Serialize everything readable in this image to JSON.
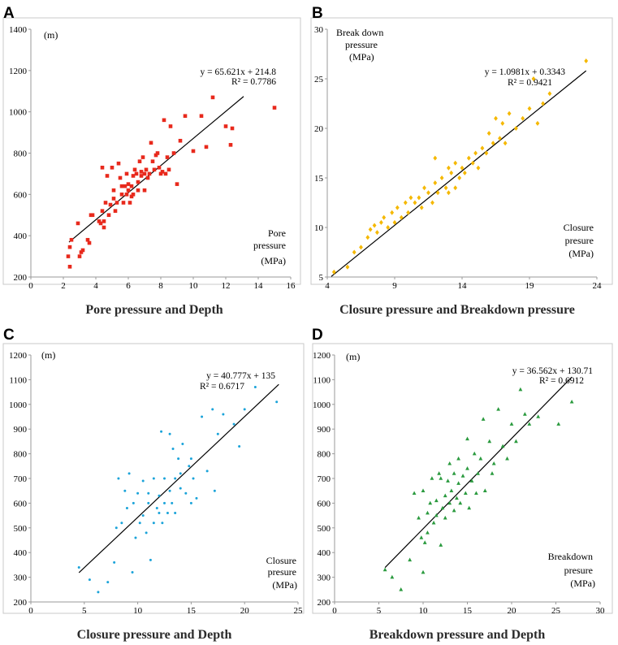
{
  "chart_data": [
    {
      "panel_label": "A",
      "type": "scatter",
      "marker": "square",
      "color": "#e8291c",
      "title": "Pore pressure and Depth",
      "ylabel": "(m)",
      "xlabel_lines": [
        "Pore",
        "pressure",
        "(MPa)"
      ],
      "xlim": [
        0,
        16
      ],
      "ylim": [
        200,
        1400
      ],
      "xticks": [
        0,
        2,
        4,
        6,
        8,
        10,
        12,
        14,
        16
      ],
      "yticks": [
        200,
        400,
        600,
        800,
        1000,
        1200,
        1400
      ],
      "equation": "y = 65.621x + 214.8",
      "r2": "R² = 0.7786",
      "fit": {
        "slope": 65.621,
        "intercept": 214.8,
        "x_range": [
          2.35,
          13.1
        ]
      },
      "x": [
        2.3,
        2.4,
        2.4,
        2.5,
        2.9,
        3.0,
        3.1,
        3.2,
        3.5,
        3.6,
        3.7,
        3.8,
        4.2,
        4.3,
        4.4,
        4.4,
        4.5,
        4.5,
        4.6,
        4.7,
        4.8,
        4.9,
        5.0,
        5.1,
        5.1,
        5.2,
        5.3,
        5.4,
        5.5,
        5.6,
        5.6,
        5.7,
        5.8,
        5.9,
        5.9,
        6.0,
        6.0,
        6.1,
        6.2,
        6.2,
        6.3,
        6.3,
        6.4,
        6.5,
        6.6,
        6.6,
        6.7,
        6.8,
        6.8,
        6.9,
        7.0,
        7.0,
        7.1,
        7.2,
        7.3,
        7.4,
        7.5,
        7.6,
        7.7,
        7.8,
        7.9,
        8.0,
        8.1,
        8.2,
        8.3,
        8.4,
        8.5,
        8.6,
        8.8,
        9.0,
        9.2,
        9.5,
        10.0,
        10.5,
        10.8,
        11.2,
        12.0,
        12.3,
        12.4,
        15.0
      ],
      "y": [
        300,
        250,
        345,
        380,
        460,
        300,
        320,
        330,
        380,
        365,
        500,
        500,
        470,
        460,
        520,
        730,
        440,
        470,
        560,
        690,
        500,
        550,
        730,
        620,
        580,
        520,
        560,
        750,
        680,
        640,
        600,
        560,
        640,
        600,
        700,
        620,
        650,
        560,
        590,
        640,
        690,
        600,
        720,
        700,
        620,
        660,
        760,
        690,
        710,
        780,
        620,
        700,
        720,
        680,
        700,
        850,
        760,
        720,
        790,
        800,
        730,
        700,
        710,
        960,
        700,
        780,
        720,
        930,
        800,
        650,
        860,
        980,
        810,
        980,
        830,
        1070,
        930,
        840,
        920,
        1020
      ]
    },
    {
      "panel_label": "B",
      "type": "scatter",
      "marker": "diamond",
      "color": "#f5b800",
      "title": "Closure pressure and Breakdown pressure",
      "ylabel_lines": [
        "Break down",
        "pressure",
        "(MPa)"
      ],
      "xlabel_lines": [
        "Closure",
        "presure",
        "(MPa)"
      ],
      "xlim": [
        4,
        24
      ],
      "ylim": [
        5,
        30
      ],
      "xticks": [
        4,
        9,
        14,
        19,
        24
      ],
      "yticks": [
        5,
        10,
        15,
        20,
        25,
        30
      ],
      "equation": "y = 1.0981x + 0.3343",
      "r2": "R² = 0.9421",
      "fit": {
        "slope": 1.0981,
        "intercept": 0.3343,
        "x_range": [
          4.3,
          23.2
        ]
      },
      "x": [
        4.5,
        5.5,
        6.0,
        6.5,
        7.0,
        7.2,
        7.5,
        7.7,
        8.0,
        8.2,
        8.5,
        8.8,
        9.0,
        9.2,
        9.5,
        9.8,
        10.0,
        10.2,
        10.5,
        10.8,
        11.0,
        11.2,
        11.5,
        11.8,
        12.0,
        12.0,
        12.2,
        12.5,
        12.8,
        13.0,
        13.0,
        13.2,
        13.5,
        13.5,
        13.8,
        14.0,
        14.2,
        14.5,
        14.8,
        15.0,
        15.2,
        15.5,
        15.8,
        16.0,
        16.3,
        16.5,
        16.8,
        17.0,
        17.2,
        17.5,
        18.0,
        18.5,
        19.0,
        19.3,
        19.6,
        20.0,
        20.5,
        23.2
      ],
      "y": [
        5.5,
        6.0,
        7.5,
        8.0,
        9.0,
        9.8,
        10.2,
        9.5,
        10.5,
        11.0,
        10.0,
        11.5,
        10.5,
        12.0,
        11.0,
        12.5,
        11.5,
        13.0,
        12.5,
        13.0,
        12.0,
        14.0,
        13.5,
        12.5,
        14.5,
        17.0,
        13.5,
        15.0,
        14.0,
        16.0,
        13.5,
        15.5,
        16.5,
        14.0,
        15.0,
        16.0,
        15.5,
        17.0,
        16.5,
        17.5,
        16.0,
        18.0,
        17.5,
        19.5,
        18.5,
        21.0,
        19.0,
        20.5,
        18.5,
        21.5,
        20.0,
        21.0,
        22.0,
        25.0,
        20.5,
        22.5,
        23.5,
        26.8
      ]
    },
    {
      "panel_label": "C",
      "type": "scatter",
      "marker": "dot",
      "color": "#1aa3d9",
      "title": "Closure pressure and Depth",
      "ylabel": "(m)",
      "xlabel_lines": [
        "Closure",
        "presure",
        "(MPa)"
      ],
      "xlim": [
        0,
        25
      ],
      "ylim": [
        200,
        1200
      ],
      "xticks": [
        0,
        5,
        10,
        15,
        20,
        25
      ],
      "yticks": [
        200,
        300,
        400,
        500,
        600,
        700,
        800,
        900,
        1000,
        1100,
        1200
      ],
      "equation": "y = 40.777x + 135",
      "r2": "R² = 0.6717",
      "fit": {
        "slope": 40.777,
        "intercept": 135,
        "x_range": [
          4.5,
          23.2
        ]
      },
      "x": [
        4.5,
        5.5,
        6.3,
        7.2,
        7.8,
        8.0,
        8.2,
        8.5,
        8.8,
        9.0,
        9.2,
        9.5,
        9.6,
        9.8,
        10.0,
        10.2,
        10.5,
        10.5,
        10.8,
        11.0,
        11.0,
        11.2,
        11.5,
        11.5,
        11.8,
        12.0,
        12.0,
        12.2,
        12.3,
        12.5,
        12.5,
        12.8,
        13.0,
        13.0,
        13.2,
        13.3,
        13.5,
        13.5,
        13.8,
        14.0,
        14.0,
        14.2,
        14.5,
        14.8,
        15.0,
        15.0,
        15.2,
        15.5,
        16.0,
        16.5,
        17.0,
        17.2,
        17.5,
        18.0,
        19.0,
        19.5,
        20.0,
        21.0,
        23.0
      ],
      "y": [
        340,
        290,
        240,
        280,
        360,
        500,
        700,
        520,
        650,
        580,
        720,
        320,
        600,
        460,
        640,
        520,
        550,
        690,
        480,
        600,
        640,
        370,
        520,
        700,
        580,
        560,
        630,
        890,
        520,
        600,
        700,
        560,
        650,
        880,
        600,
        820,
        700,
        560,
        780,
        660,
        720,
        840,
        640,
        750,
        780,
        600,
        700,
        620,
        950,
        730,
        980,
        650,
        880,
        960,
        920,
        830,
        980,
        1070,
        1010
      ]
    },
    {
      "panel_label": "D",
      "type": "scatter",
      "marker": "triangle",
      "color": "#2a9a3e",
      "title": "Breakdown pressure and Depth",
      "ylabel": "(m)",
      "xlabel_lines": [
        "Breakdown",
        "presure",
        "(MPa)"
      ],
      "xlim": [
        0,
        30
      ],
      "ylim": [
        200,
        1200
      ],
      "xticks": [
        0,
        5,
        10,
        15,
        20,
        25,
        30
      ],
      "yticks": [
        200,
        300,
        400,
        500,
        600,
        700,
        800,
        900,
        1000,
        1100,
        1200
      ],
      "equation": "y = 36.562x + 130.71",
      "r2": "R² = 0.6912",
      "fit": {
        "slope": 36.562,
        "intercept": 130.71,
        "x_range": [
          5.7,
          26.8
        ]
      },
      "x": [
        5.7,
        6.5,
        7.5,
        8.5,
        9.0,
        9.5,
        9.8,
        10.0,
        10.0,
        10.2,
        10.5,
        10.5,
        10.8,
        11.0,
        11.2,
        11.5,
        11.5,
        11.8,
        12.0,
        12.0,
        12.2,
        12.5,
        12.5,
        12.8,
        13.0,
        13.0,
        13.2,
        13.5,
        13.5,
        13.8,
        14.0,
        14.0,
        14.2,
        14.5,
        14.8,
        15.0,
        15.0,
        15.2,
        15.5,
        15.8,
        16.0,
        16.2,
        16.5,
        16.8,
        17.0,
        17.5,
        17.8,
        18.0,
        18.5,
        19.0,
        19.5,
        20.0,
        20.5,
        21.0,
        21.5,
        22.0,
        23.0,
        25.3,
        26.8
      ],
      "y": [
        330,
        300,
        250,
        370,
        640,
        540,
        460,
        320,
        650,
        440,
        560,
        480,
        600,
        700,
        520,
        610,
        550,
        720,
        430,
        700,
        580,
        630,
        540,
        690,
        600,
        760,
        650,
        570,
        720,
        620,
        680,
        780,
        600,
        710,
        640,
        740,
        860,
        580,
        690,
        800,
        640,
        720,
        780,
        940,
        650,
        850,
        720,
        760,
        980,
        830,
        780,
        920,
        850,
        1060,
        960,
        920,
        950,
        920,
        1010
      ]
    }
  ]
}
